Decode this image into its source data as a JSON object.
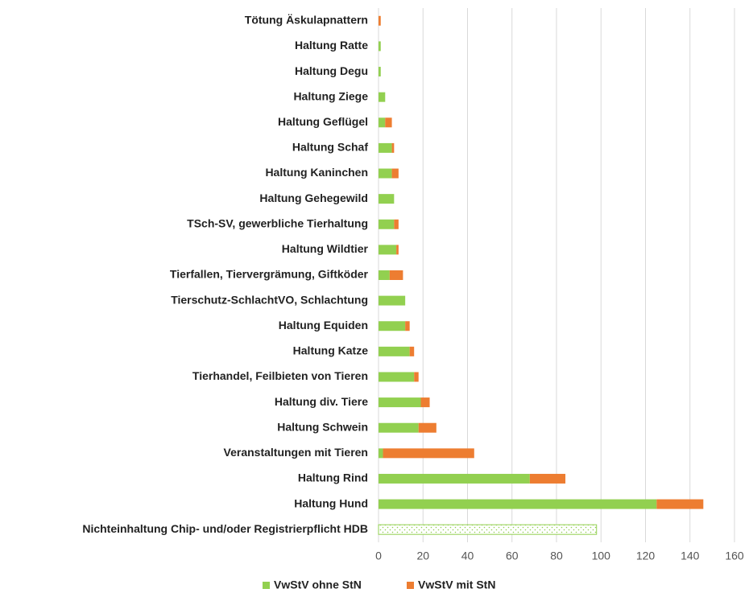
{
  "chart_data": {
    "type": "stacked_barh",
    "categories": [
      "Tötung Äskulapnattern",
      "Haltung Ratte",
      "Haltung Degu",
      "Haltung Ziege",
      "Haltung Geflügel",
      "Haltung Schaf",
      "Haltung Kaninchen",
      "Haltung Gehegewild",
      "TSch-SV, gewerbliche Tierhaltung",
      "Haltung Wildtier",
      "Tierfallen, Tiervergrämung, Giftköder",
      "Tierschutz-SchlachtVO, Schlachtung",
      "Haltung Equiden",
      "Haltung Katze",
      "Tierhandel, Feilbieten von Tieren",
      "Haltung div. Tiere",
      "Haltung Schwein",
      "Veranstaltungen mit Tieren",
      "Haltung Rind",
      "Haltung Hund",
      "Nichteinhaltung Chip- und/oder Registrierpflicht HDB"
    ],
    "series": [
      {
        "name": "VwStV ohne StN",
        "color": "#92d050",
        "values": [
          0,
          1,
          1,
          3,
          3,
          6,
          6,
          7,
          7,
          8,
          5,
          12,
          12,
          14,
          16,
          19,
          18,
          2,
          68,
          125,
          98
        ],
        "pattern": [
          null,
          null,
          null,
          null,
          null,
          null,
          null,
          null,
          null,
          null,
          null,
          null,
          null,
          null,
          null,
          null,
          null,
          null,
          null,
          null,
          "dots"
        ]
      },
      {
        "name": "VwStV mit StN",
        "color": "#ed7d31",
        "values": [
          1,
          0,
          0,
          0,
          3,
          1,
          3,
          0,
          2,
          1,
          6,
          0,
          2,
          2,
          2,
          4,
          8,
          41,
          16,
          21,
          0
        ]
      }
    ],
    "xlim": [
      0,
      160
    ],
    "xticks": [
      0,
      20,
      40,
      60,
      80,
      100,
      120,
      140,
      160
    ],
    "grid": true,
    "legend": "bottom"
  }
}
